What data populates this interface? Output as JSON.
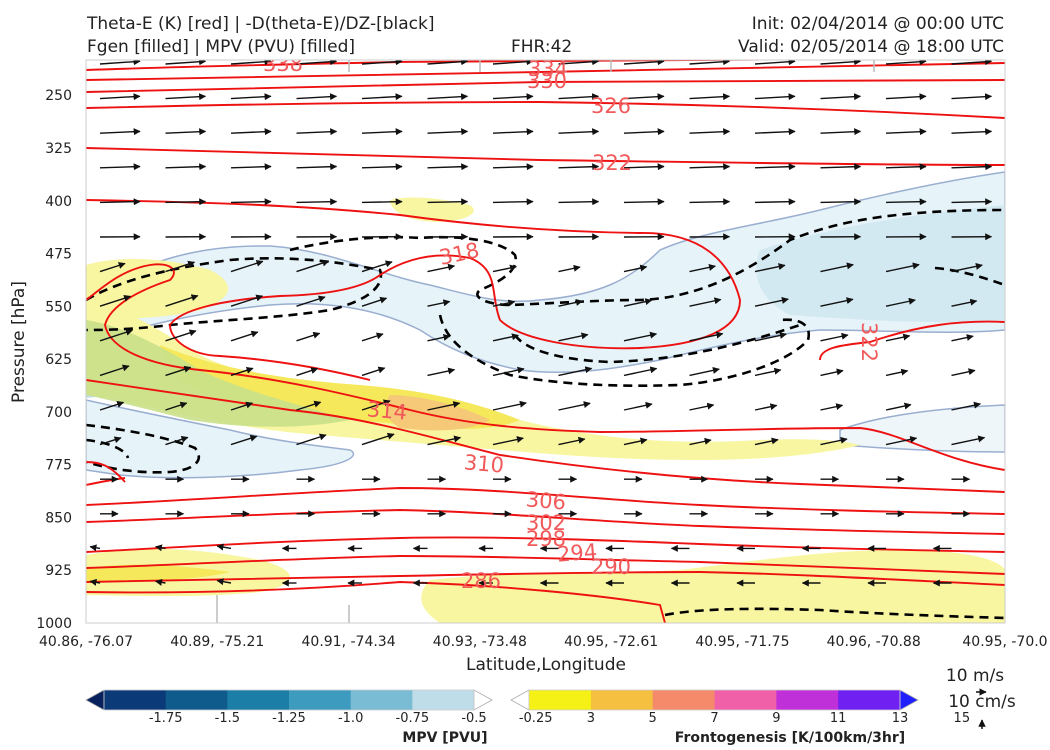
{
  "header": {
    "title_line1": "Theta-E (K) [red] | -D(theta-E)/DZ-[black]",
    "title_line2": "Fgen [filled] | MPV (PVU) [filled]",
    "fhr": "FHR:42",
    "init": "Init: 02/04/2014 @ 00:00 UTC",
    "valid": "Valid: 02/05/2014 @ 18:00 UTC"
  },
  "chart_data": {
    "type": "cross-section",
    "xlabel": "Latitude,Longitude",
    "ylabel": "Pressure [hPa]",
    "x_ticks": [
      "40.86, -76.07",
      "40.89, -75.21",
      "40.91, -74.34",
      "40.93, -73.48",
      "40.95, -72.61",
      "40.95, -71.75",
      "40.96, -70.88",
      "40.95, -70.0"
    ],
    "y_ticks": [
      250,
      325,
      400,
      475,
      550,
      625,
      700,
      775,
      850,
      925,
      1000
    ],
    "ylim": [
      1000,
      200
    ],
    "theta_e_contour_labels": [
      338,
      334,
      330,
      326,
      322,
      318,
      322,
      314,
      310,
      306,
      302,
      298,
      294,
      290,
      286
    ],
    "contour_colors": {
      "theta_e": "#ee1111",
      "dtheta_dz": "#000000",
      "mpv_outline": "#9aaed0",
      "vectors": "#111111"
    },
    "wind_reference": {
      "label_ms": "10 m/s",
      "label_cms": "10 cm/s"
    },
    "mpv_colorbar": {
      "label": "MPV [PVU]",
      "ticks": [
        "-1.75",
        "-1.5",
        "-1.25",
        "-1.0",
        "-0.75",
        "-0.5",
        "-0.25"
      ],
      "colors": [
        "#06215c",
        "#0b3a78",
        "#0f5b8c",
        "#1a7ea6",
        "#3c9bbf",
        "#7bbcd5",
        "#bfdde8",
        "#ffffff"
      ]
    },
    "fgen_colorbar": {
      "label": "Frontogenesis [K/100km/3hr]",
      "ticks": [
        "3",
        "5",
        "7",
        "9",
        "11",
        "13",
        "15"
      ],
      "colors": [
        "#ffffff",
        "#f5f015",
        "#f5c040",
        "#f58a6a",
        "#f060a8",
        "#c030d8",
        "#7020f0",
        "#2020ff"
      ]
    }
  }
}
